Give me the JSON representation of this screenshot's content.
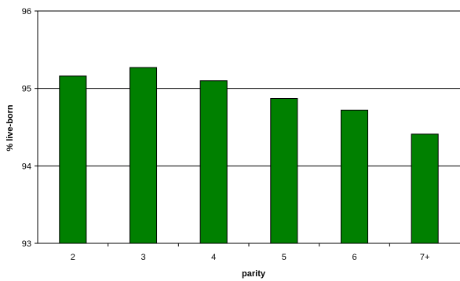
{
  "chart_data": {
    "type": "bar",
    "categories": [
      "2",
      "3",
      "4",
      "5",
      "6",
      "7+"
    ],
    "values": [
      95.16,
      95.27,
      95.1,
      94.87,
      94.72,
      94.41
    ],
    "xlabel": "parity",
    "ylabel": "% live-born",
    "ylim": [
      93,
      96
    ],
    "yticks": [
      "93",
      "94",
      "95",
      "96"
    ],
    "grid": true,
    "bar_color": "#008000",
    "bar_edge_color": "#000000"
  }
}
